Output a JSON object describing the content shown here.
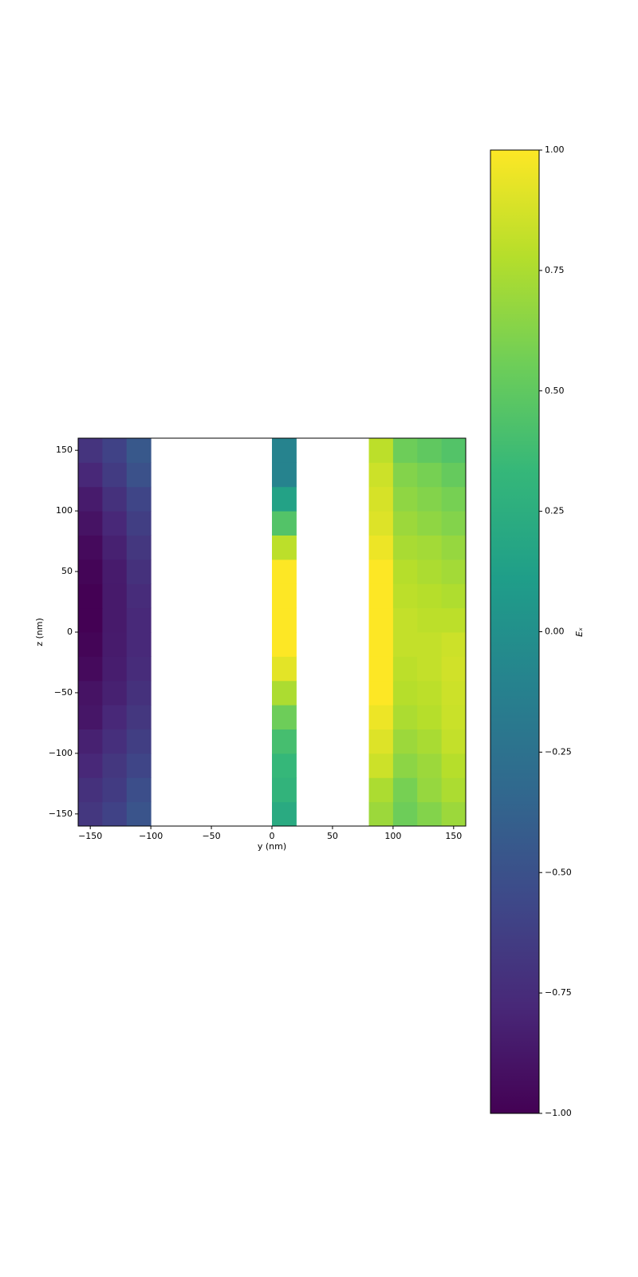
{
  "chart_data": {
    "type": "heatmap",
    "xlabel": "y (nm)",
    "ylabel": "z (nm)",
    "colorbar_label": "Eₓ",
    "colormap": "viridis",
    "xbins": [
      -160,
      -140,
      -120,
      -100,
      -80,
      -60,
      -40,
      -20,
      0,
      20,
      40,
      60,
      80,
      100,
      120,
      140,
      160
    ],
    "ybins": [
      -160,
      -140,
      -120,
      -100,
      -80,
      -60,
      -40,
      -20,
      0,
      20,
      40,
      60,
      80,
      100,
      120,
      140,
      160
    ],
    "values": [
      [
        -0.68,
        -0.6,
        -0.48,
        null,
        null,
        null,
        null,
        null,
        0.22,
        null,
        null,
        null,
        0.7,
        0.55,
        0.62,
        0.7
      ],
      [
        -0.72,
        -0.65,
        -0.52,
        null,
        null,
        null,
        null,
        null,
        0.3,
        null,
        null,
        null,
        0.75,
        0.58,
        0.68,
        0.75
      ],
      [
        -0.78,
        -0.68,
        -0.58,
        null,
        null,
        null,
        null,
        null,
        0.33,
        null,
        null,
        null,
        0.85,
        0.65,
        0.7,
        0.78
      ],
      [
        -0.82,
        -0.73,
        -0.63,
        null,
        null,
        null,
        null,
        null,
        0.4,
        null,
        null,
        null,
        0.9,
        0.7,
        0.74,
        0.82
      ],
      [
        -0.88,
        -0.78,
        -0.68,
        null,
        null,
        null,
        null,
        null,
        0.55,
        null,
        null,
        null,
        0.95,
        0.75,
        0.78,
        0.84
      ],
      [
        -0.9,
        -0.82,
        -0.72,
        null,
        null,
        null,
        null,
        null,
        0.75,
        null,
        null,
        null,
        1.0,
        0.78,
        0.8,
        0.85
      ],
      [
        -0.95,
        -0.84,
        -0.75,
        null,
        null,
        null,
        null,
        null,
        0.92,
        null,
        null,
        null,
        1.0,
        0.8,
        0.82,
        0.86
      ],
      [
        -0.98,
        -0.85,
        -0.77,
        null,
        null,
        null,
        null,
        null,
        1.0,
        null,
        null,
        null,
        1.0,
        0.82,
        0.82,
        0.85
      ],
      [
        -1.0,
        -0.86,
        -0.77,
        null,
        null,
        null,
        null,
        null,
        1.0,
        null,
        null,
        null,
        1.0,
        0.82,
        0.8,
        0.8
      ],
      [
        -1.0,
        -0.86,
        -0.75,
        null,
        null,
        null,
        null,
        null,
        1.0,
        null,
        null,
        null,
        1.0,
        0.8,
        0.78,
        0.76
      ],
      [
        -0.98,
        -0.85,
        -0.72,
        null,
        null,
        null,
        null,
        null,
        1.0,
        null,
        null,
        null,
        1.0,
        0.78,
        0.75,
        0.72
      ],
      [
        -0.95,
        -0.82,
        -0.68,
        null,
        null,
        null,
        null,
        null,
        0.8,
        null,
        null,
        null,
        0.95,
        0.74,
        0.72,
        0.68
      ],
      [
        -0.9,
        -0.78,
        -0.63,
        null,
        null,
        null,
        null,
        null,
        0.45,
        null,
        null,
        null,
        0.9,
        0.7,
        0.66,
        0.62
      ],
      [
        -0.85,
        -0.72,
        -0.58,
        null,
        null,
        null,
        null,
        null,
        0.15,
        null,
        null,
        null,
        0.88,
        0.66,
        0.62,
        0.58
      ],
      [
        -0.78,
        -0.65,
        -0.5,
        null,
        null,
        null,
        null,
        null,
        -0.1,
        null,
        null,
        null,
        0.85,
        0.62,
        0.58,
        0.52
      ],
      [
        -0.7,
        -0.6,
        -0.45,
        null,
        null,
        null,
        null,
        null,
        -0.1,
        null,
        null,
        null,
        0.8,
        0.55,
        0.5,
        0.45
      ]
    ],
    "xlim": [
      -160,
      160
    ],
    "ylim": [
      -160,
      160
    ],
    "xticks": [
      {
        "value": -150,
        "label": "−150"
      },
      {
        "value": -100,
        "label": "−100"
      },
      {
        "value": -50,
        "label": "−50"
      },
      0,
      50,
      100,
      150
    ],
    "yticks": [
      {
        "value": -150,
        "label": "−150"
      },
      {
        "value": -100,
        "label": "−100"
      },
      {
        "value": -50,
        "label": "−50"
      },
      0,
      50,
      100,
      150
    ],
    "clim": [
      -1,
      1
    ],
    "cticks": [
      {
        "value": -1,
        "label": "−1.00"
      },
      {
        "value": -0.75,
        "label": "−0.75"
      },
      {
        "value": -0.5,
        "label": "−0.50"
      },
      {
        "value": -0.25,
        "label": "−0.25"
      },
      {
        "value": 0,
        "label": "0.00"
      },
      {
        "value": 0.25,
        "label": "0.25"
      },
      {
        "value": 0.5,
        "label": "0.50"
      },
      {
        "value": 0.75,
        "label": "0.75"
      },
      {
        "value": 1,
        "label": "1.00"
      }
    ]
  }
}
